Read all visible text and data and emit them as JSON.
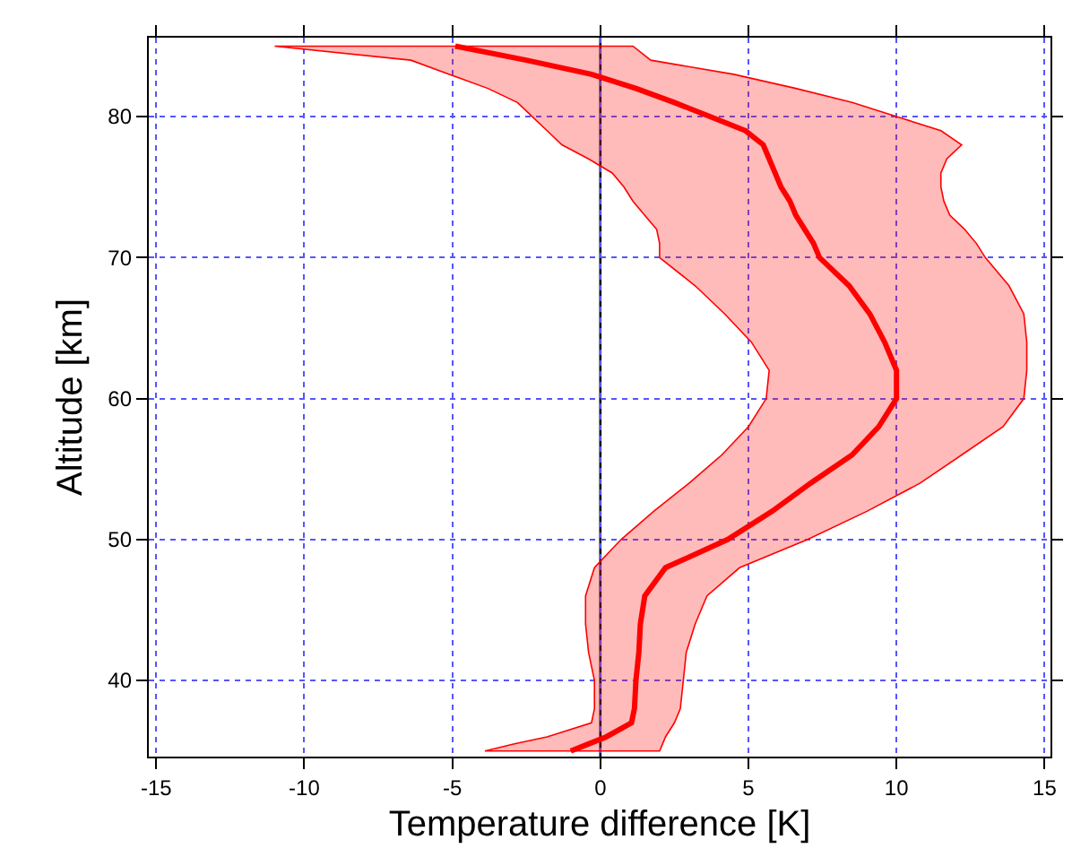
{
  "chart_data": {
    "type": "line",
    "orientation": "horizontal",
    "xlabel": "Temperature difference [K]",
    "ylabel": "Altitude [km]",
    "x": [
      85,
      84,
      83,
      82,
      81,
      80,
      79,
      78,
      77,
      76,
      75,
      74,
      73,
      72,
      71,
      70,
      68,
      66,
      64,
      62,
      60,
      58,
      56,
      54,
      52,
      50,
      48,
      46,
      44,
      42,
      40,
      38,
      37,
      36,
      35.5,
      35
    ],
    "series": [
      {
        "color": "#ff0000",
        "values": [
          -4.9,
          -2.5,
          -0.3,
          1.2,
          2.5,
          3.7,
          4.9,
          5.5,
          5.7,
          5.9,
          6.1,
          6.4,
          6.6,
          6.9,
          7.2,
          7.4,
          8.4,
          9.1,
          9.6,
          10.0,
          10.0,
          9.4,
          8.5,
          7.1,
          5.8,
          4.3,
          2.2,
          1.5,
          1.35,
          1.3,
          1.2,
          1.15,
          1.05,
          0.2,
          -0.4,
          -1.0
        ],
        "lower": [
          -11.0,
          -6.4,
          -5.1,
          -3.8,
          -2.8,
          -2.3,
          -1.8,
          -1.3,
          -0.4,
          0.4,
          0.8,
          1.1,
          1.5,
          1.9,
          2.0,
          2.0,
          3.2,
          4.2,
          5.1,
          5.7,
          5.6,
          5.0,
          4.1,
          3.0,
          1.8,
          0.7,
          -0.2,
          -0.5,
          -0.5,
          -0.4,
          -0.2,
          -0.2,
          -0.3,
          -1.8,
          -2.9,
          -3.9
        ],
        "upper": [
          1.1,
          1.7,
          4.5,
          6.6,
          8.5,
          10.0,
          11.5,
          12.2,
          11.7,
          11.5,
          11.5,
          11.6,
          11.8,
          12.3,
          12.7,
          13.0,
          13.8,
          14.3,
          14.4,
          14.4,
          14.3,
          13.6,
          12.2,
          10.8,
          9.0,
          7.0,
          4.7,
          3.6,
          3.2,
          2.9,
          2.8,
          2.7,
          2.5,
          2.2,
          2.1,
          2.0
        ]
      }
    ],
    "xlim": [
      -15.25,
      15.2
    ],
    "xticks": [
      -15,
      -10,
      -5,
      0,
      5,
      10,
      15
    ],
    "ylim": [
      34.6,
      85.6
    ],
    "yticks": [
      40,
      50,
      60,
      70,
      80
    ],
    "ref_lines": [
      {
        "axis": "x",
        "value": 0,
        "color": "#000000"
      }
    ],
    "grid": true,
    "marker": "none",
    "line_style": "solid"
  }
}
